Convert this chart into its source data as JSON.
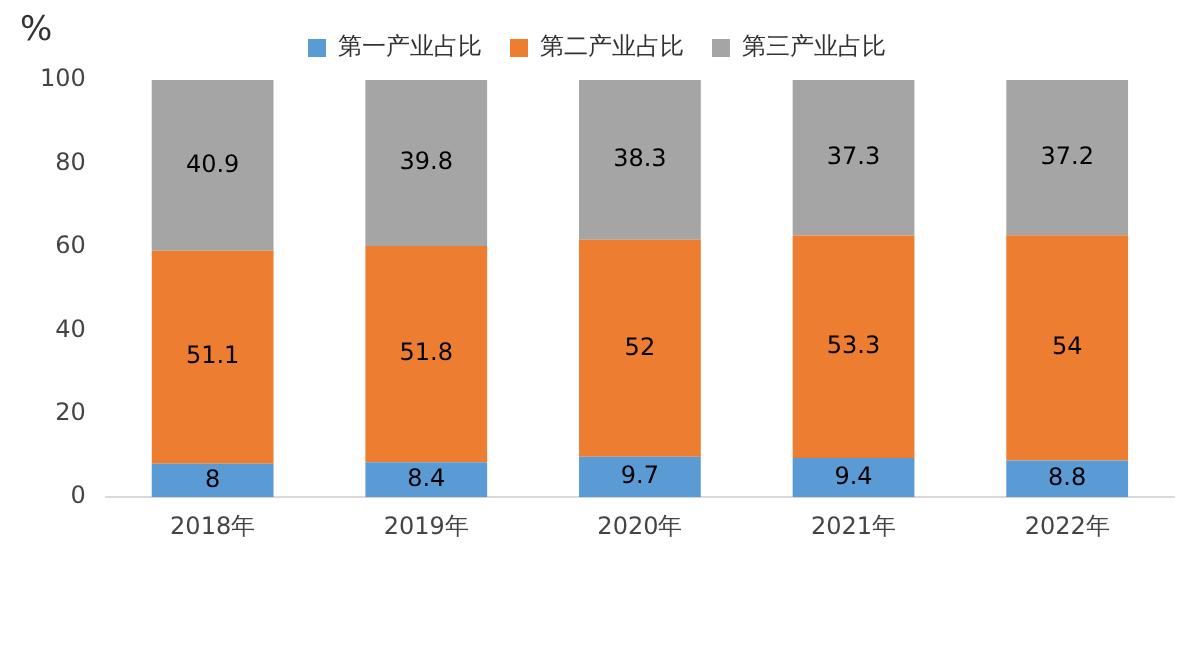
{
  "chart_data": {
    "type": "bar",
    "stacked": true,
    "ylabel": "%",
    "categories": [
      "2018年",
      "2019年",
      "2020年",
      "2021年",
      "2022年"
    ],
    "series": [
      {
        "name": "第一产业占比",
        "color": "#5b9bd5",
        "values": [
          8,
          8.4,
          9.7,
          9.4,
          8.8
        ]
      },
      {
        "name": "第二产业占比",
        "color": "#ed7d31",
        "values": [
          51.1,
          51.8,
          52,
          53.3,
          54
        ]
      },
      {
        "name": "第三产业占比",
        "color": "#a5a5a5",
        "values": [
          40.9,
          39.8,
          38.3,
          37.3,
          37.2
        ]
      }
    ],
    "ylim": [
      0,
      100
    ],
    "yticks": [
      0,
      20,
      40,
      60,
      80,
      100
    ],
    "grid": false,
    "legend": "top",
    "data_labels": true
  }
}
